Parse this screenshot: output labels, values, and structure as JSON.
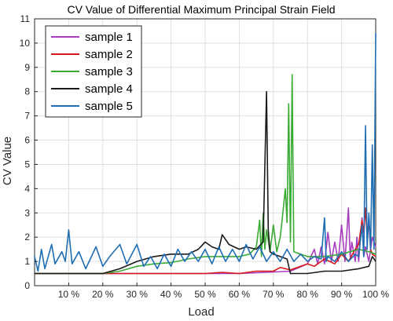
{
  "chart_data": {
    "type": "line",
    "title": "CV Value of Differential Maximum Principal Strain Field",
    "xlabel": "Load",
    "ylabel": "CV Value",
    "xlim": [
      0,
      100
    ],
    "ylim": [
      0,
      11
    ],
    "grid": true,
    "legend_position": "top-left",
    "x_ticks": [
      10,
      20,
      30,
      40,
      50,
      60,
      70,
      80,
      90,
      100
    ],
    "x_tick_labels": [
      "10 %",
      "20 %",
      "30 %",
      "40 %",
      "50 %",
      "60 %",
      "70 %",
      "80 %",
      "90 %",
      "100 %"
    ],
    "y_ticks": [
      0,
      1,
      2,
      3,
      4,
      5,
      6,
      7,
      8,
      9,
      10,
      11
    ],
    "y_tick_labels": [
      "0",
      "1",
      "2",
      "3",
      "4",
      "5",
      "6",
      "7",
      "8",
      "9",
      "10",
      "11"
    ],
    "series": [
      {
        "name": "sample 1",
        "color": "#a63dbf",
        "points": [
          [
            0,
            0.5
          ],
          [
            10,
            0.5
          ],
          [
            20,
            0.5
          ],
          [
            30,
            0.5
          ],
          [
            40,
            0.5
          ],
          [
            50,
            0.5
          ],
          [
            60,
            0.5
          ],
          [
            68,
            0.55
          ],
          [
            75,
            0.6
          ],
          [
            80,
            0.9
          ],
          [
            82,
            1.5
          ],
          [
            83,
            0.9
          ],
          [
            84,
            1.6
          ],
          [
            85,
            0.9
          ],
          [
            86,
            2.2
          ],
          [
            87,
            1.0
          ],
          [
            88,
            1.8
          ],
          [
            89,
            1.0
          ],
          [
            90,
            2.5
          ],
          [
            91,
            1.0
          ],
          [
            92,
            3.2
          ],
          [
            92.5,
            1.2
          ],
          [
            93,
            1.8
          ],
          [
            94,
            1.0
          ],
          [
            94.5,
            2.0
          ],
          [
            95,
            1.0
          ],
          [
            96,
            2.8
          ],
          [
            96.5,
            1.2
          ],
          [
            97,
            1.6
          ],
          [
            98,
            1.0
          ],
          [
            99,
            2.0
          ],
          [
            100,
            1.6
          ]
        ]
      },
      {
        "name": "sample 2",
        "color": "#d7191c",
        "points": [
          [
            0,
            0.5
          ],
          [
            10,
            0.5
          ],
          [
            20,
            0.5
          ],
          [
            30,
            0.5
          ],
          [
            40,
            0.5
          ],
          [
            50,
            0.5
          ],
          [
            55,
            0.55
          ],
          [
            60,
            0.5
          ],
          [
            65,
            0.6
          ],
          [
            70,
            0.6
          ],
          [
            72,
            0.75
          ],
          [
            75,
            0.65
          ],
          [
            78,
            0.8
          ],
          [
            80,
            0.9
          ],
          [
            82,
            0.8
          ],
          [
            85,
            1.1
          ],
          [
            88,
            0.9
          ],
          [
            90,
            1.3
          ],
          [
            92,
            1.0
          ],
          [
            94,
            1.5
          ],
          [
            95,
            1.7
          ],
          [
            96,
            2.7
          ],
          [
            96.5,
            2.2
          ],
          [
            97,
            3.2
          ],
          [
            97.5,
            2.0
          ],
          [
            98,
            2.7
          ],
          [
            98.5,
            1.5
          ],
          [
            99,
            1.3
          ],
          [
            100,
            1.2
          ]
        ]
      },
      {
        "name": "sample 3",
        "color": "#3aab35",
        "points": [
          [
            0,
            0.5
          ],
          [
            10,
            0.5
          ],
          [
            20,
            0.5
          ],
          [
            25,
            0.6
          ],
          [
            30,
            0.8
          ],
          [
            35,
            0.9
          ],
          [
            40,
            0.95
          ],
          [
            45,
            1.1
          ],
          [
            50,
            1.2
          ],
          [
            55,
            1.2
          ],
          [
            60,
            1.2
          ],
          [
            63,
            1.3
          ],
          [
            65,
            1.6
          ],
          [
            66,
            2.7
          ],
          [
            66.5,
            1.2
          ],
          [
            67,
            3.0
          ],
          [
            67.5,
            1.5
          ],
          [
            68,
            2.3
          ],
          [
            69,
            1.4
          ],
          [
            70,
            2.5
          ],
          [
            71,
            1.4
          ],
          [
            72,
            2.0
          ],
          [
            72.5,
            2.6
          ],
          [
            73,
            3.3
          ],
          [
            73.5,
            4.0
          ],
          [
            74,
            2.6
          ],
          [
            74.5,
            7.5
          ],
          [
            75,
            1.8
          ],
          [
            75.5,
            8.7
          ],
          [
            76,
            1.4
          ],
          [
            78,
            1.3
          ],
          [
            80,
            1.2
          ],
          [
            85,
            1.2
          ],
          [
            90,
            1.3
          ],
          [
            95,
            1.5
          ],
          [
            98,
            1.4
          ],
          [
            100,
            1.3
          ]
        ]
      },
      {
        "name": "sample 4",
        "color": "#1a1a1a",
        "points": [
          [
            0,
            0.5
          ],
          [
            10,
            0.5
          ],
          [
            20,
            0.5
          ],
          [
            25,
            0.7
          ],
          [
            30,
            1.0
          ],
          [
            35,
            1.2
          ],
          [
            40,
            1.3
          ],
          [
            45,
            1.3
          ],
          [
            48,
            1.5
          ],
          [
            50,
            1.8
          ],
          [
            52,
            1.6
          ],
          [
            54,
            1.5
          ],
          [
            55,
            2.1
          ],
          [
            57,
            1.7
          ],
          [
            60,
            1.5
          ],
          [
            62,
            1.6
          ],
          [
            65,
            1.5
          ],
          [
            67,
            1.8
          ],
          [
            68,
            8.0
          ],
          [
            68.5,
            2.3
          ],
          [
            69,
            1.4
          ],
          [
            70,
            1.3
          ],
          [
            72,
            1.2
          ],
          [
            74,
            1.1
          ],
          [
            75,
            0.5
          ],
          [
            77,
            0.5
          ],
          [
            80,
            0.5
          ],
          [
            85,
            0.6
          ],
          [
            90,
            0.6
          ],
          [
            95,
            0.7
          ],
          [
            98,
            0.8
          ],
          [
            99,
            1.2
          ],
          [
            100,
            1.0
          ]
        ]
      },
      {
        "name": "sample 5",
        "color": "#1f6eb4",
        "points": [
          [
            0,
            1.2
          ],
          [
            1,
            0.6
          ],
          [
            2,
            1.5
          ],
          [
            3,
            0.7
          ],
          [
            5,
            1.7
          ],
          [
            6,
            0.9
          ],
          [
            8,
            1.4
          ],
          [
            9,
            1.0
          ],
          [
            10,
            2.3
          ],
          [
            11,
            0.9
          ],
          [
            13,
            1.4
          ],
          [
            15,
            0.7
          ],
          [
            18,
            1.6
          ],
          [
            20,
            0.8
          ],
          [
            22,
            1.2
          ],
          [
            25,
            1.7
          ],
          [
            27,
            0.9
          ],
          [
            30,
            1.7
          ],
          [
            32,
            0.8
          ],
          [
            34,
            1.2
          ],
          [
            36,
            0.7
          ],
          [
            38,
            1.3
          ],
          [
            40,
            0.8
          ],
          [
            42,
            1.5
          ],
          [
            44,
            1.0
          ],
          [
            46,
            1.4
          ],
          [
            48,
            1.0
          ],
          [
            50,
            1.5
          ],
          [
            52,
            0.9
          ],
          [
            54,
            1.6
          ],
          [
            56,
            1.0
          ],
          [
            58,
            1.5
          ],
          [
            60,
            1.0
          ],
          [
            62,
            1.7
          ],
          [
            64,
            1.1
          ],
          [
            66,
            1.6
          ],
          [
            68,
            1.0
          ],
          [
            70,
            1.4
          ],
          [
            72,
            1.0
          ],
          [
            74,
            1.5
          ],
          [
            76,
            1.0
          ],
          [
            78,
            1.3
          ],
          [
            80,
            1.0
          ],
          [
            82,
            1.2
          ],
          [
            84,
            1.1
          ],
          [
            85,
            2.8
          ],
          [
            85.5,
            1.0
          ],
          [
            86,
            1.2
          ],
          [
            88,
            1.0
          ],
          [
            90,
            1.4
          ],
          [
            92,
            1.0
          ],
          [
            94,
            1.3
          ],
          [
            95,
            1.2
          ],
          [
            96,
            2.5
          ],
          [
            96.5,
            1.2
          ],
          [
            97,
            6.6
          ],
          [
            97.5,
            1.5
          ],
          [
            98,
            3.0
          ],
          [
            98.5,
            1.5
          ],
          [
            99,
            5.8
          ],
          [
            99.5,
            1.5
          ],
          [
            100,
            10.4
          ]
        ]
      }
    ]
  }
}
